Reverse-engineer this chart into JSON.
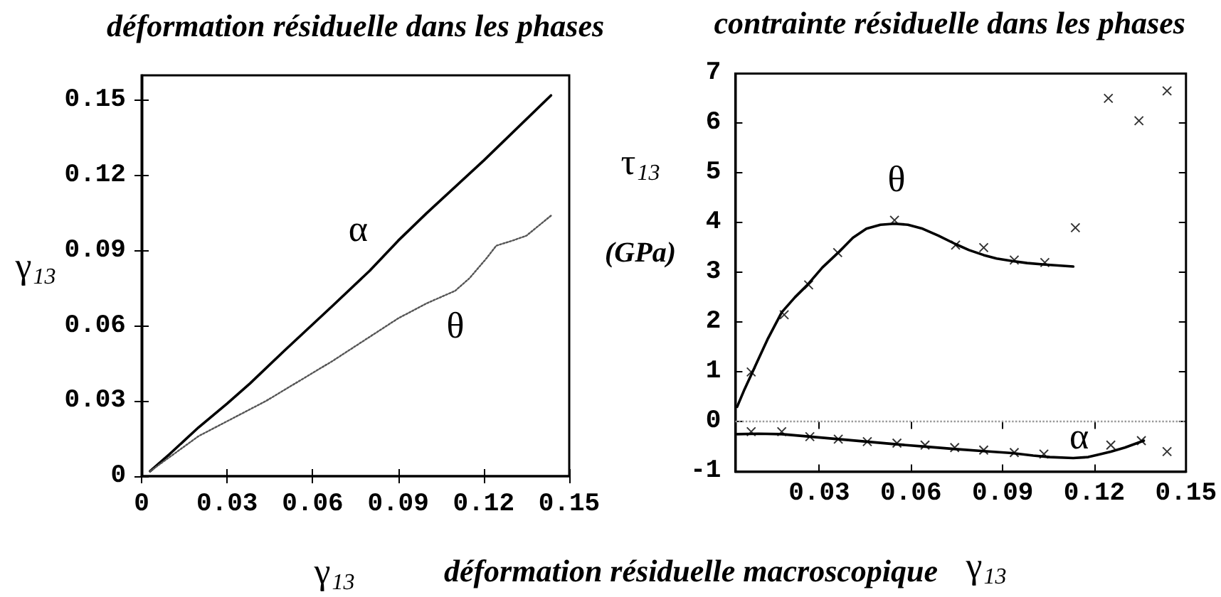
{
  "chart_data": [
    {
      "type": "line",
      "title": "déformation résiduelle dans les phases",
      "xlabel": "γ$_{13}$",
      "ylabel": "γ$_{13}$",
      "xlim": [
        0,
        0.15
      ],
      "xticks": [
        0,
        0.03,
        0.06,
        0.09,
        0.12,
        0.15
      ],
      "ylim": [
        0,
        0.16
      ],
      "yticks": [
        0,
        0.03,
        0.06,
        0.09,
        0.12,
        0.15
      ],
      "series": [
        {
          "color": "#000000",
          "line_style": "solid",
          "x": [
            0.003,
            0.01,
            0.02,
            0.03,
            0.038,
            0.05,
            0.067,
            0.08,
            0.09,
            0.1,
            0.12,
            0.1436
          ],
          "values": [
            0.002,
            0.009,
            0.0195,
            0.029,
            0.037,
            0.05,
            0.068,
            0.082,
            0.094,
            0.105,
            0.126,
            0.152
          ]
        },
        {
          "color": "#555555",
          "line_style": "dotted",
          "x": [
            0.003,
            0.02,
            0.0436,
            0.067,
            0.09,
            0.1,
            0.11,
            0.115,
            0.121,
            0.1244,
            0.13,
            0.135,
            0.1436
          ],
          "values": [
            0.002,
            0.016,
            0.03,
            0.046,
            0.063,
            0.069,
            0.074,
            0.079,
            0.087,
            0.092,
            0.094,
            0.096,
            0.104
          ]
        }
      ],
      "annotations": [
        "α",
        "θ"
      ]
    },
    {
      "type": "line",
      "title": "contrainte résiduelle dans les phases",
      "xlabel": "γ$_{13}$",
      "ylabel": "τ$_{13}$\n(GPa)",
      "xlim": [
        0.0025,
        0.15
      ],
      "xticks": [
        0.03,
        0.06,
        0.09,
        0.12,
        0.15
      ],
      "ylim": [
        -1,
        7
      ],
      "yticks": [
        -1,
        0,
        1,
        2,
        3,
        4,
        5,
        6,
        7
      ],
      "series": [
        {
          "color": "#000000",
          "x": [
            0.0031,
            0.0055,
            0.0085,
            0.013,
            0.0177,
            0.022,
            0.0261,
            0.031,
            0.0362,
            0.041,
            0.0454,
            0.05,
            0.0546,
            0.059,
            0.0638,
            0.069,
            0.0746,
            0.079,
            0.0838,
            0.088,
            0.0931,
            0.098,
            0.1038,
            0.1131
          ],
          "values": [
            0.3,
            0.65,
            1.05,
            1.65,
            2.2,
            2.5,
            2.75,
            3.1,
            3.4,
            3.7,
            3.88,
            3.96,
            3.98,
            3.96,
            3.88,
            3.74,
            3.57,
            3.45,
            3.35,
            3.28,
            3.23,
            3.19,
            3.16,
            3.12
          ]
        },
        {
          "type": "scatter",
          "marker": "cross",
          "color": "#000000",
          "x": [
            0.0077,
            0.0185,
            0.0265,
            0.036,
            0.0546,
            0.0746,
            0.0838,
            0.0938,
            0.1038,
            0.1138,
            0.1246,
            0.1346,
            0.1438
          ],
          "values": [
            1.0,
            2.15,
            2.75,
            3.4,
            4.05,
            3.55,
            3.5,
            3.25,
            3.2,
            3.9,
            6.5,
            6.05,
            6.65
          ]
        },
        {
          "color": "#000000",
          "x": [
            0.0031,
            0.01,
            0.0177,
            0.027,
            0.0362,
            0.0454,
            0.0546,
            0.0646,
            0.0746,
            0.0838,
            0.0931,
            0.1,
            0.1054,
            0.1131,
            0.118,
            0.1208,
            0.1254,
            0.13,
            0.1362
          ],
          "values": [
            -0.25,
            -0.24,
            -0.25,
            -0.3,
            -0.35,
            -0.4,
            -0.45,
            -0.5,
            -0.55,
            -0.59,
            -0.63,
            -0.68,
            -0.71,
            -0.73,
            -0.71,
            -0.67,
            -0.6,
            -0.52,
            -0.38
          ]
        },
        {
          "type": "scatter",
          "marker": "cross",
          "color": "#000000",
          "x": [
            0.0077,
            0.0177,
            0.0269,
            0.0362,
            0.0457,
            0.0554,
            0.0646,
            0.0743,
            0.0838,
            0.0938,
            0.1035,
            0.1254,
            0.1354,
            0.1438
          ],
          "values": [
            -0.2,
            -0.2,
            -0.3,
            -0.35,
            -0.4,
            -0.43,
            -0.47,
            -0.52,
            -0.57,
            -0.62,
            -0.65,
            -0.47,
            -0.38,
            -0.6
          ]
        }
      ],
      "ref_lines": [
        {
          "axis": "y",
          "value": 0,
          "color": "#999999",
          "line_style": "dotted"
        }
      ],
      "annotations": [
        "θ",
        "α",
        "déformation résiduelle macroscopique"
      ]
    }
  ]
}
